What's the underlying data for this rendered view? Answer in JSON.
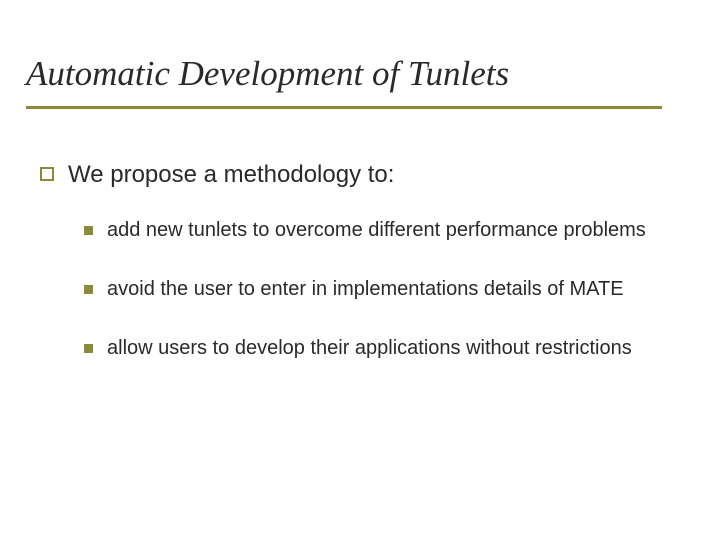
{
  "colors": {
    "accent": "#8a8a3a",
    "text": "#2a2a2a",
    "background": "#ffffff"
  },
  "typography": {
    "title_font": "Georgia serif italic",
    "title_size_pt": 35,
    "body_font": "Verdana sans-serif",
    "lvl1_size_pt": 24,
    "lvl2_size_pt": 20
  },
  "slide": {
    "title": "Automatic Development of Tunlets",
    "lvl1": {
      "text": "We propose a methodology to:"
    },
    "lvl2": [
      {
        "text": "add new tunlets to overcome different performance problems"
      },
      {
        "text": "avoid the user to enter in implementations details of MATE"
      },
      {
        "text": "allow users to develop their applications without restrictions"
      }
    ]
  }
}
